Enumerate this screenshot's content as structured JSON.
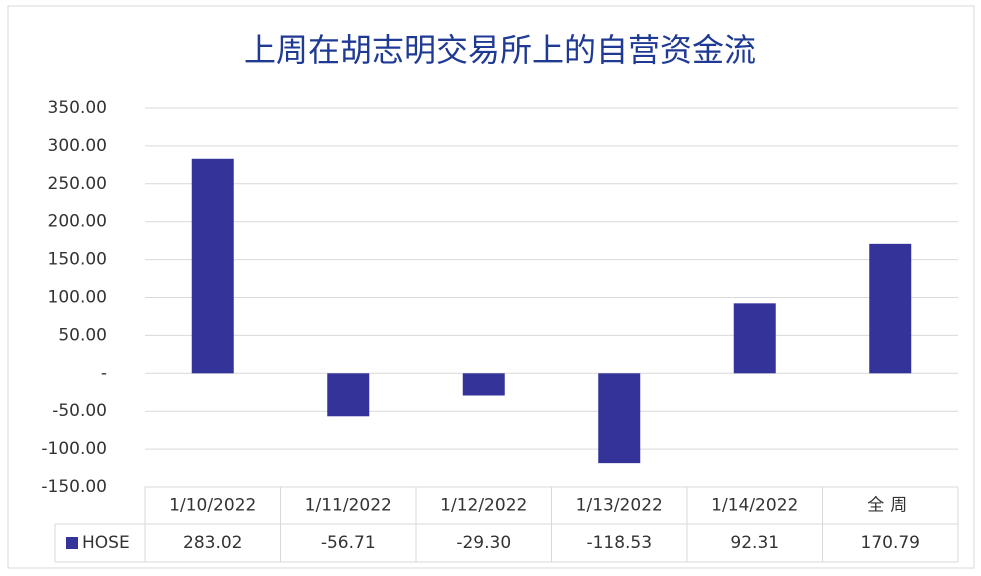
{
  "chart_data": {
    "type": "bar",
    "title": "上周在胡志明交易所上的自营资金流",
    "categories": [
      "1/10/2022",
      "1/11/2022",
      "1/12/2022",
      "1/13/2022",
      "1/14/2022",
      "全周"
    ],
    "series": [
      {
        "name": "HOSE",
        "color": "#333399",
        "values": [
          283.02,
          -56.71,
          -29.3,
          -118.53,
          92.31,
          170.79
        ],
        "value_labels": [
          "283.02",
          "-56.71",
          "-29.30",
          "-118.53",
          "92.31",
          "170.79"
        ]
      }
    ],
    "ylim": [
      -150,
      350
    ],
    "yticks": [
      {
        "value": -150,
        "label": "-150.00"
      },
      {
        "value": -100,
        "label": "-100.00"
      },
      {
        "value": -50,
        "label": "-50.00"
      },
      {
        "value": 0,
        "label": "-"
      },
      {
        "value": 50,
        "label": "50.00"
      },
      {
        "value": 100,
        "label": "100.00"
      },
      {
        "value": 150,
        "label": "150.00"
      },
      {
        "value": 200,
        "label": "200.00"
      },
      {
        "value": 250,
        "label": "250.00"
      },
      {
        "value": 300,
        "label": "300.00"
      },
      {
        "value": 350,
        "label": "350.00"
      }
    ],
    "grid": true
  }
}
